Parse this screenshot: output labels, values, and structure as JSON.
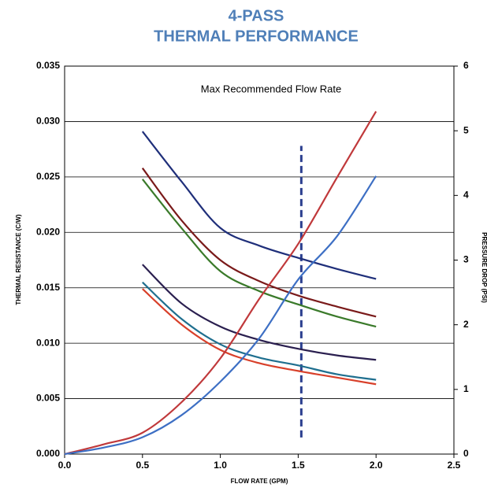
{
  "chart_data": {
    "type": "line",
    "title": "4-PASS",
    "subtitle": "THERMAL PERFORMANCE",
    "x_label": "FLOW RATE (GPM)",
    "y_label": "THERMAL RESISTANCE (C/W)",
    "y2_label": "PRESSURE DROP (PSI)",
    "annotation": "Max Recommended Flow Rate",
    "reference_line": {
      "x": 1.52,
      "y": [
        0.0015,
        0.0278
      ],
      "color": "#2b3f8f"
    },
    "grid": true,
    "xlim": [
      0,
      2.5
    ],
    "xticks": [
      {
        "value": 0,
        "label": "0.0"
      },
      {
        "value": 0.5,
        "label": "0.5"
      },
      {
        "value": 1,
        "label": "1.0"
      },
      {
        "value": 1.5,
        "label": "1.5"
      },
      {
        "value": 2,
        "label": "2.0"
      },
      {
        "value": 2.5,
        "label": "2.5"
      }
    ],
    "ylim": [
      0,
      0.035
    ],
    "yticks": [
      {
        "value": 0,
        "label": "0.000"
      },
      {
        "value": 0.005,
        "label": "0.005"
      },
      {
        "value": 0.01,
        "label": "0.010"
      },
      {
        "value": 0.015,
        "label": "0.015"
      },
      {
        "value": 0.02,
        "label": "0.020"
      },
      {
        "value": 0.025,
        "label": "0.025"
      },
      {
        "value": 0.03,
        "label": "0.030"
      },
      {
        "value": 0.035,
        "label": "0.035"
      }
    ],
    "y2lim": [
      0,
      6
    ],
    "y2ticks": [
      0,
      1,
      2,
      3,
      4,
      5,
      6
    ],
    "series": [
      {
        "color": "#1f2f7a",
        "x": [
          0.5,
          0.75,
          1,
          1.25,
          1.5,
          1.75,
          2
        ],
        "values": [
          0.0291,
          0.0246,
          0.0204,
          0.0188,
          0.0177,
          0.0167,
          0.0158
        ]
      },
      {
        "color": "#7a1a1a",
        "x": [
          0.5,
          0.75,
          1,
          1.25,
          1.5,
          1.75,
          2
        ],
        "values": [
          0.0258,
          0.0211,
          0.0175,
          0.0156,
          0.0143,
          0.0133,
          0.0124
        ]
      },
      {
        "color": "#3a7a2a",
        "x": [
          0.5,
          0.75,
          1,
          1.25,
          1.5,
          1.75,
          2
        ],
        "values": [
          0.0248,
          0.0204,
          0.0165,
          0.0147,
          0.0135,
          0.0124,
          0.0115
        ]
      },
      {
        "color": "#2a1f4f",
        "x": [
          0.5,
          0.75,
          1,
          1.25,
          1.5,
          1.75,
          2
        ],
        "values": [
          0.0171,
          0.0136,
          0.0115,
          0.0103,
          0.0095,
          0.0089,
          0.0085
        ]
      },
      {
        "color": "#1f6f8f",
        "x": [
          0.5,
          0.75,
          1,
          1.25,
          1.5,
          1.75,
          2
        ],
        "values": [
          0.0155,
          0.0122,
          0.0099,
          0.0087,
          0.008,
          0.0072,
          0.0067
        ]
      },
      {
        "color": "#d8402a",
        "x": [
          0.5,
          0.75,
          1,
          1.25,
          1.5,
          1.75,
          2
        ],
        "values": [
          0.0149,
          0.0117,
          0.0094,
          0.0082,
          0.0075,
          0.0069,
          0.0063
        ]
      },
      {
        "color": "#c0393b",
        "axis": "y2",
        "x": [
          0,
          0.25,
          0.5,
          0.75,
          1,
          1.25,
          1.5,
          1.75,
          2
        ],
        "values": [
          0,
          0.15,
          0.33,
          0.8,
          1.48,
          2.4,
          3.25,
          4.28,
          5.3
        ]
      },
      {
        "color": "#3d6fc4",
        "axis": "y2",
        "x": [
          0,
          0.25,
          0.5,
          0.75,
          1,
          1.25,
          1.5,
          1.75,
          2
        ],
        "values": [
          0,
          0.1,
          0.26,
          0.6,
          1.12,
          1.79,
          2.7,
          3.37,
          4.3
        ]
      }
    ]
  }
}
